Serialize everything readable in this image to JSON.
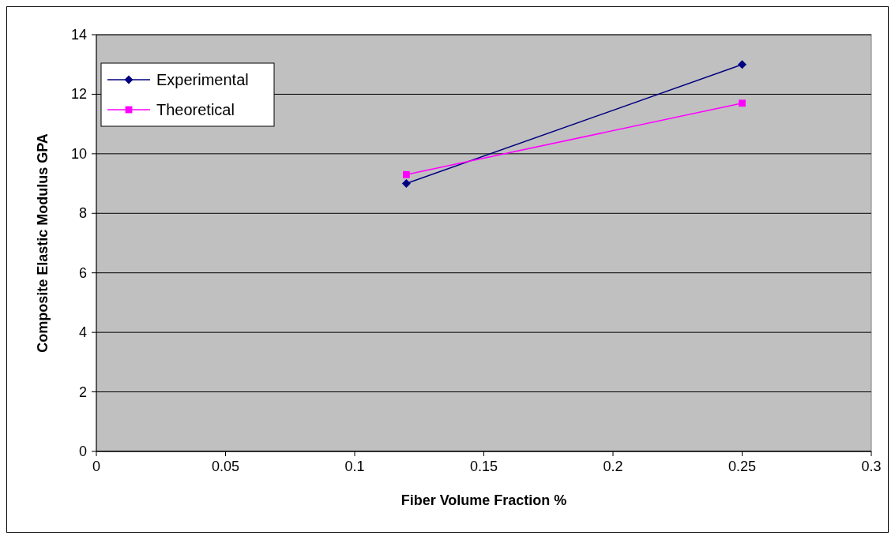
{
  "chart_data": {
    "type": "line",
    "xlabel": "Fiber Volume Fraction %",
    "ylabel": "Composite Elastic Modulus GPA",
    "x": [
      0.12,
      0.25
    ],
    "series": [
      {
        "name": "Experimental",
        "color": "#000080",
        "marker": "diamond",
        "values": [
          9,
          13
        ]
      },
      {
        "name": "Theoretical",
        "color": "#ff00ff",
        "marker": "square",
        "values": [
          9.3,
          11.7
        ]
      }
    ],
    "xlim": [
      0,
      0.3
    ],
    "xticks": [
      0,
      0.05,
      0.1,
      0.15,
      0.2,
      0.25,
      0.3
    ],
    "ylim": [
      0,
      14
    ],
    "yticks": [
      0,
      2,
      4,
      6,
      8,
      10,
      12,
      14
    ],
    "grid": "y",
    "legend": "top left"
  }
}
